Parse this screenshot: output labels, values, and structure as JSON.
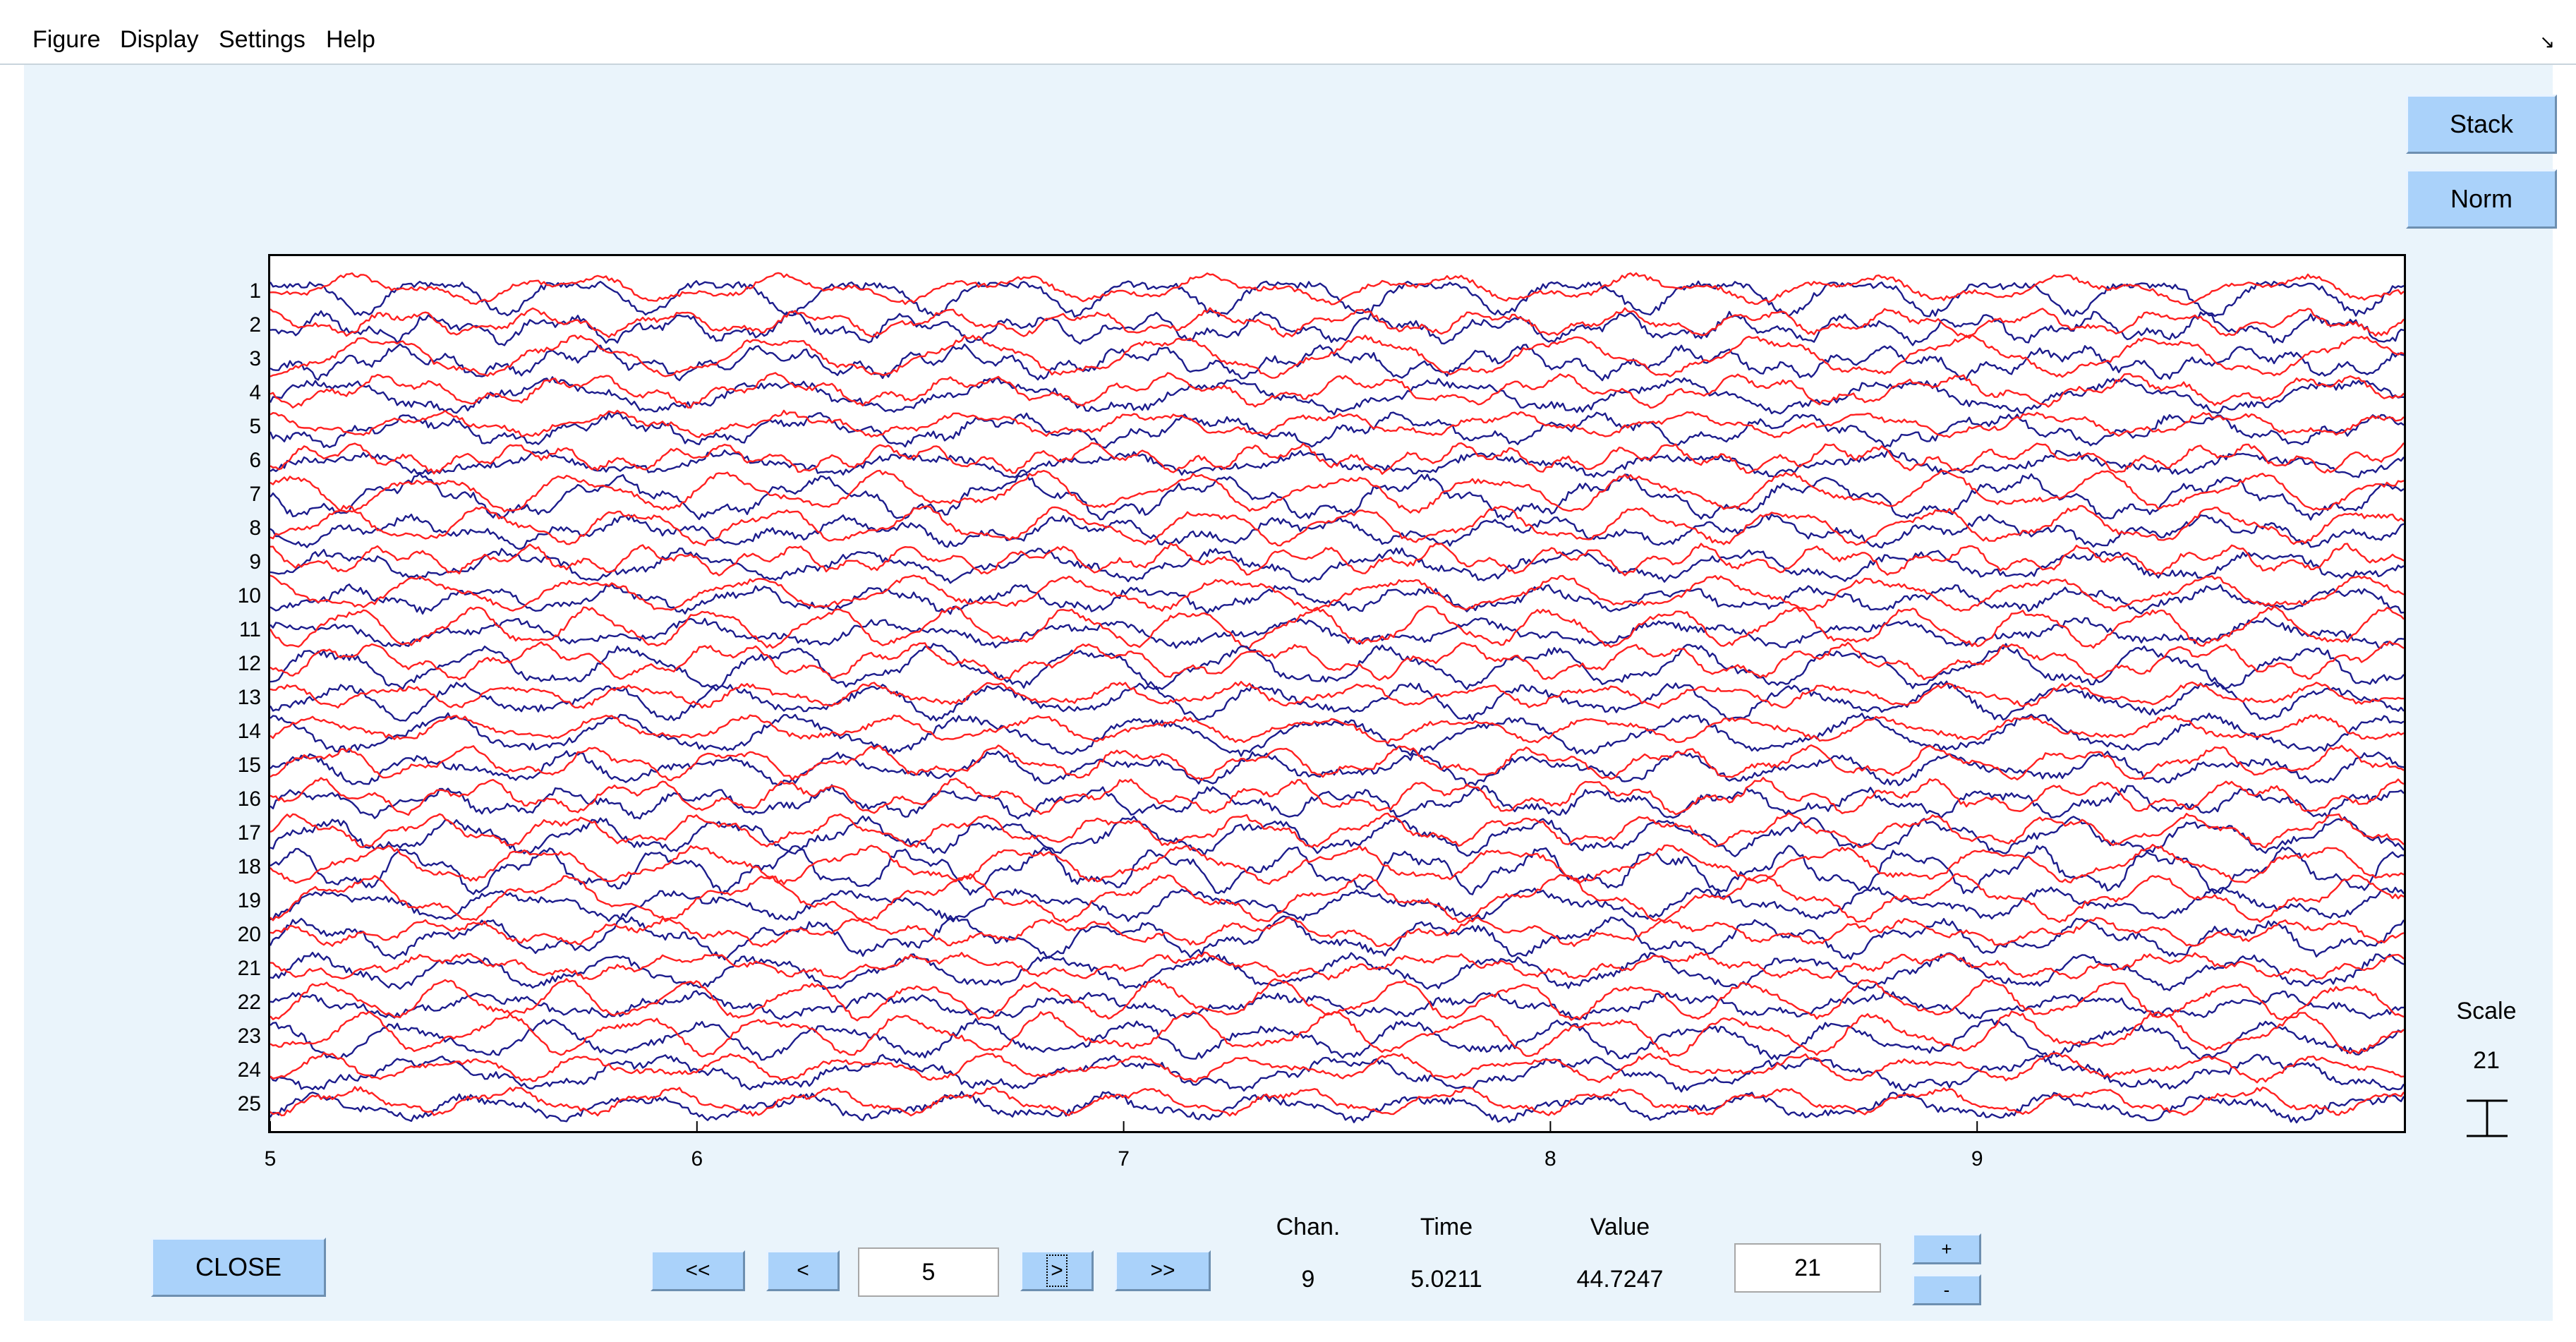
{
  "menu": {
    "items": [
      "Figure",
      "Display",
      "Settings",
      "Help"
    ],
    "corner_glyph": "↘"
  },
  "buttons": {
    "stack": "Stack",
    "norm": "Norm",
    "close": "CLOSE",
    "first": "<<",
    "prev": "<",
    "next": ">",
    "last": ">>",
    "scale_up": "+",
    "scale_down": "-"
  },
  "navigation": {
    "window_start": "5"
  },
  "readout": {
    "chan_label": "Chan.",
    "time_label": "Time",
    "value_label": "Value",
    "chan_value": "9",
    "time_value": "5.0211",
    "value_value": "44.7247"
  },
  "scale": {
    "label": "Scale",
    "value": "21",
    "input_value": "21"
  },
  "colors": {
    "trace_blue": "#1c1c8c",
    "trace_red": "#ff2020",
    "button_face": "#aad2fa",
    "workspace": "#eaf4fb"
  },
  "chart_data": {
    "type": "line",
    "channels": [
      "1",
      "2",
      "3",
      "4",
      "5",
      "6",
      "7",
      "8",
      "9",
      "10",
      "11",
      "12",
      "13",
      "14",
      "15",
      "16",
      "17",
      "18",
      "19",
      "20",
      "21",
      "22",
      "23",
      "24",
      "25"
    ],
    "x_ticks": [
      "5",
      "6",
      "7",
      "8",
      "9"
    ],
    "xlim": [
      5,
      10
    ],
    "series": [
      {
        "color": "blue"
      },
      {
        "color": "red"
      }
    ],
    "grid": false
  }
}
